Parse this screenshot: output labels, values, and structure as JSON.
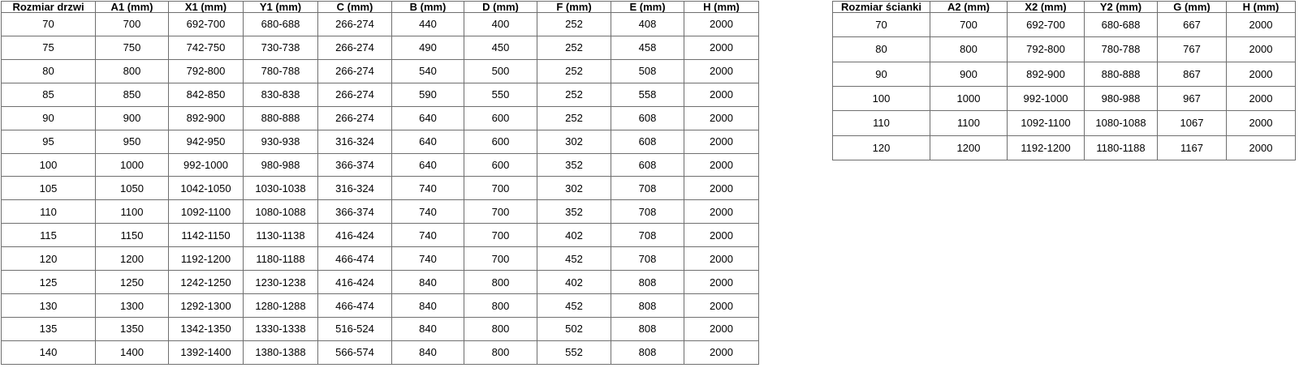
{
  "colors": {
    "border": "#6f6f6f",
    "text": "#000000",
    "background": "#ffffff"
  },
  "left_table": {
    "title": "door sizes table",
    "headers": [
      "Rozmiar drzwi",
      "A1 (mm)",
      "X1 (mm)",
      "Y1 (mm)",
      "C (mm)",
      "B (mm)",
      "D (mm)",
      "F (mm)",
      "E (mm)",
      "H (mm)"
    ],
    "rows": [
      [
        "70",
        "700",
        "692-700",
        "680-688",
        "266-274",
        "440",
        "400",
        "252",
        "408",
        "2000"
      ],
      [
        "75",
        "750",
        "742-750",
        "730-738",
        "266-274",
        "490",
        "450",
        "252",
        "458",
        "2000"
      ],
      [
        "80",
        "800",
        "792-800",
        "780-788",
        "266-274",
        "540",
        "500",
        "252",
        "508",
        "2000"
      ],
      [
        "85",
        "850",
        "842-850",
        "830-838",
        "266-274",
        "590",
        "550",
        "252",
        "558",
        "2000"
      ],
      [
        "90",
        "900",
        "892-900",
        "880-888",
        "266-274",
        "640",
        "600",
        "252",
        "608",
        "2000"
      ],
      [
        "95",
        "950",
        "942-950",
        "930-938",
        "316-324",
        "640",
        "600",
        "302",
        "608",
        "2000"
      ],
      [
        "100",
        "1000",
        "992-1000",
        "980-988",
        "366-374",
        "640",
        "600",
        "352",
        "608",
        "2000"
      ],
      [
        "105",
        "1050",
        "1042-1050",
        "1030-1038",
        "316-324",
        "740",
        "700",
        "302",
        "708",
        "2000"
      ],
      [
        "110",
        "1100",
        "1092-1100",
        "1080-1088",
        "366-374",
        "740",
        "700",
        "352",
        "708",
        "2000"
      ],
      [
        "115",
        "1150",
        "1142-1150",
        "1130-1138",
        "416-424",
        "740",
        "700",
        "402",
        "708",
        "2000"
      ],
      [
        "120",
        "1200",
        "1192-1200",
        "1180-1188",
        "466-474",
        "740",
        "700",
        "452",
        "708",
        "2000"
      ],
      [
        "125",
        "1250",
        "1242-1250",
        "1230-1238",
        "416-424",
        "840",
        "800",
        "402",
        "808",
        "2000"
      ],
      [
        "130",
        "1300",
        "1292-1300",
        "1280-1288",
        "466-474",
        "840",
        "800",
        "452",
        "808",
        "2000"
      ],
      [
        "135",
        "1350",
        "1342-1350",
        "1330-1338",
        "516-524",
        "840",
        "800",
        "502",
        "808",
        "2000"
      ],
      [
        "140",
        "1400",
        "1392-1400",
        "1380-1388",
        "566-574",
        "840",
        "800",
        "552",
        "808",
        "2000"
      ]
    ]
  },
  "right_table": {
    "title": "wall panel sizes table",
    "headers": [
      "Rozmiar ścianki",
      "A2 (mm)",
      "X2 (mm)",
      "Y2 (mm)",
      "G (mm)",
      "H (mm)"
    ],
    "rows": [
      [
        "70",
        "700",
        "692-700",
        "680-688",
        "667",
        "2000"
      ],
      [
        "80",
        "800",
        "792-800",
        "780-788",
        "767",
        "2000"
      ],
      [
        "90",
        "900",
        "892-900",
        "880-888",
        "867",
        "2000"
      ],
      [
        "100",
        "1000",
        "992-1000",
        "980-988",
        "967",
        "2000"
      ],
      [
        "110",
        "1100",
        "1092-1100",
        "1080-1088",
        "1067",
        "2000"
      ],
      [
        "120",
        "1200",
        "1192-1200",
        "1180-1188",
        "1167",
        "2000"
      ]
    ]
  }
}
